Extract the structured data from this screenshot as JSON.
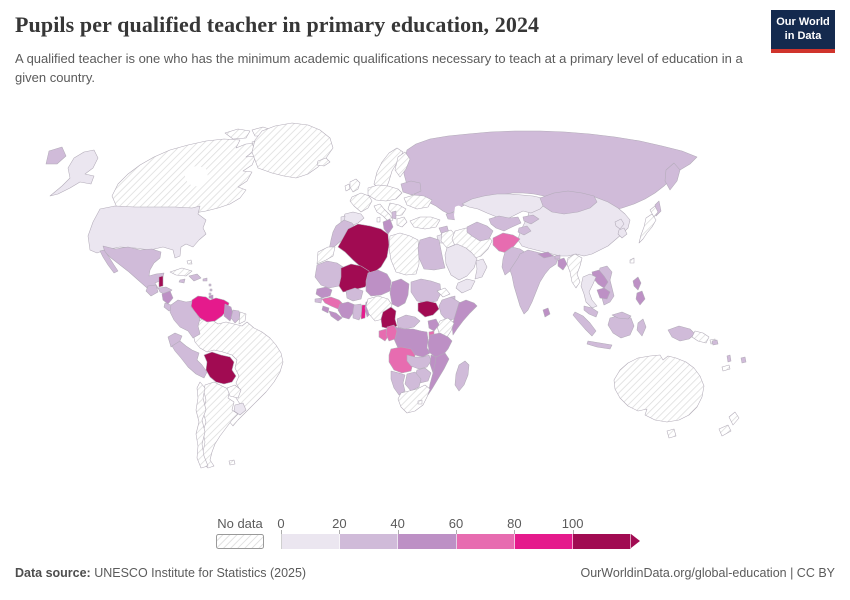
{
  "header": {
    "title": "Pupils per qualified teacher in primary education, 2024",
    "subtitle": "A qualified teacher is one who has the minimum academic qualifications necessary to teach at a primary level of education in a given country."
  },
  "logo": {
    "line1": "Our World",
    "line2": "in Data",
    "bg_color": "#142a4e",
    "accent_color": "#d0342c"
  },
  "footer": {
    "source_label": "Data source:",
    "source_text": " UNESCO Institute for Statistics (2025)",
    "right_text": "OurWorldinData.org/global-education | CC BY"
  },
  "chart_data": {
    "type": "choropleth",
    "title": "Pupils per qualified teacher in primary education, 2024",
    "legend": {
      "no_data_label": "No data",
      "tick_labels": [
        "0",
        "20",
        "40",
        "60",
        "80",
        "100"
      ],
      "bin_ranges": [
        "0-20",
        "20-40",
        "40-60",
        "60-80",
        "80-100",
        "100+"
      ],
      "bin_colors": [
        "#ebe6f0",
        "#d0bbd9",
        "#bd90c5",
        "#e76cb0",
        "#e51a8c",
        "#a10b52"
      ],
      "legend_position": "bottom"
    },
    "palette": {
      "b0": "#ebe6f0",
      "b1": "#d0bbd9",
      "b2": "#bd90c5",
      "b3": "#e76cb0",
      "b4": "#e51a8c",
      "b5": "#a10b52"
    },
    "border_color": "#b2abb8",
    "countries": {
      "canada": "nodata",
      "greenland": "nodata",
      "arctic-islands": "nodata",
      "iceland": "nodata",
      "alaska": "b0",
      "usa": "b0",
      "mexico": "b1",
      "guatemala": "b1",
      "belize": "b5",
      "honduras": "b1",
      "nicaragua": "b2",
      "costa-rica": "b1",
      "panama": "b2",
      "cuba": "nodata",
      "bahamas": "nodata",
      "hispaniola": "b1",
      "jamaica": "b1",
      "puerto-rico": "b1",
      "lesser-antilles": "b1",
      "trinidad": "b2",
      "colombia": "b1",
      "venezuela": "b4",
      "guyana": "b2",
      "suriname": "b1",
      "french-guiana": "nodata",
      "ecuador": "b1",
      "peru": "b1",
      "bolivia": "b5",
      "brazil": "nodata",
      "paraguay": "nodata",
      "uruguay": "b0",
      "argentina": "nodata",
      "chile": "nodata",
      "falkland-islands": "nodata",
      "uk": "nodata",
      "ireland": "nodata",
      "france": "nodata",
      "central-europe": "nodata",
      "scandinavia": "nodata",
      "finland": "nodata",
      "baltics-belarus": "b1",
      "ukraine": "nodata",
      "balkans": "nodata",
      "italy": "nodata",
      "greece": "nodata",
      "albania": "b1",
      "spain": "b0",
      "portugal": "b0",
      "turkey": "nodata",
      "russia": "b1",
      "caucasus": "b1",
      "syria": "b1",
      "israel-jordan": "b0",
      "iraq": "nodata",
      "iran": "nodata",
      "saudi-arabia": "b0",
      "yemen": "b0",
      "oman": "b0",
      "morocco": "b1",
      "western-sahara": "nodata",
      "algeria": "b5",
      "tunisia": "b2",
      "libya": "nodata",
      "egypt": "b1",
      "mauritania": "b1",
      "mali": "b5",
      "senegal": "b2",
      "guinea-bissau": "b1",
      "guinea": "b3",
      "sierra-leone": "b2",
      "liberia": "b2",
      "cote-divoire": "b2",
      "ghana": "b1",
      "togo": "b4",
      "benin": "b2",
      "burkina-faso": "b1",
      "niger": "b2",
      "nigeria": "nodata",
      "chad": "b2",
      "sudan": "b1",
      "south-sudan": "b5",
      "eritrea": "nodata",
      "djibouti": "b1",
      "ethiopia": "b1",
      "somalia": "b2",
      "kenya": "nodata",
      "uganda": "b2",
      "rwanda-burundi": "b3",
      "tanzania": "b2",
      "drc": "b2",
      "gabon": "b3",
      "congo": "b3",
      "cameroon": "b5",
      "central-african-republic": "b1",
      "angola": "b3",
      "zambia": "b1",
      "malawi": "b2",
      "mozambique": "b2",
      "zimbabwe": "b1",
      "botswana": "b1",
      "namibia": "b1",
      "south-africa": "nodata",
      "lesotho": "nodata",
      "madagascar": "b1",
      "kazakhstan": "b0",
      "uzbekistan": "b1",
      "turkmenistan": "b1",
      "kyrgyzstan": "b1",
      "tajikistan": "b1",
      "afghanistan": "b3",
      "pakistan": "b1",
      "india": "b1",
      "nepal": "b2",
      "bhutan": "b1",
      "bangladesh": "b2",
      "sri-lanka": "b2",
      "china": "b0",
      "mongolia": "b1",
      "north-korea": "b0",
      "south-korea": "b0",
      "japan": "nodata",
      "taiwan": "nodata",
      "myanmar": "nodata",
      "thailand": "b0",
      "laos": "b2",
      "vietnam": "b1",
      "cambodia": "b2",
      "malaysia": "b1",
      "indonesia": "b1",
      "philippines": "b2",
      "papua-new-guinea": "nodata",
      "new-caledonia": "nodata",
      "solomon-islands": "b1",
      "vanuatu": "b1",
      "fiji": "b1",
      "australia": "nodata",
      "new-zealand": "nodata"
    }
  }
}
